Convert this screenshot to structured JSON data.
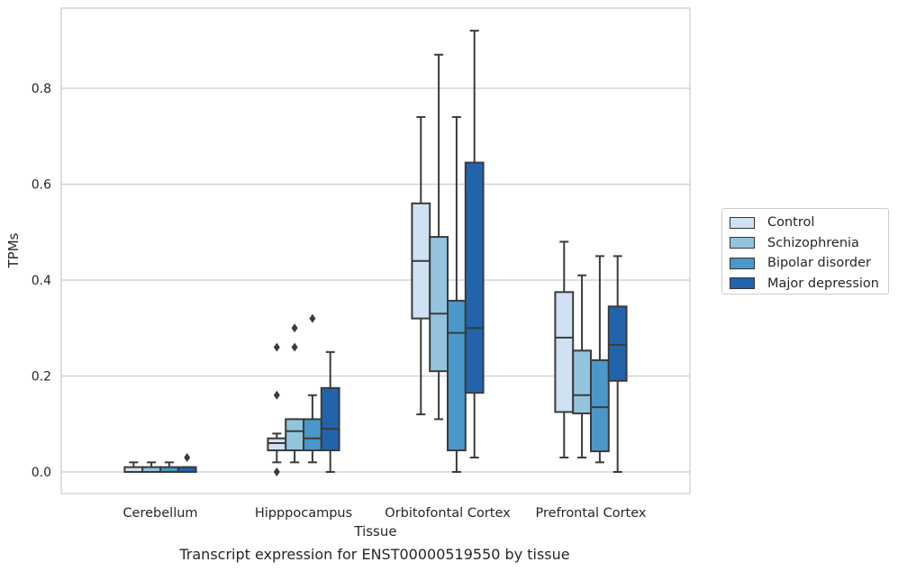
{
  "chart_data": {
    "type": "box",
    "xlabel": "Tissue",
    "ylabel": "TPMs",
    "ylim": [
      -0.045,
      0.965
    ],
    "yticks": [
      0.0,
      0.2,
      0.4,
      0.6,
      0.8
    ],
    "ytick_labels": [
      "0.0",
      "0.2",
      "0.4",
      "0.6",
      "0.8"
    ],
    "grid": "horizontal",
    "legend_position": "right",
    "categories": [
      "Cerebellum",
      "Hipppocampus",
      "Orbitofontal Cortex",
      "Prefrontal Cortex"
    ],
    "series": [
      {
        "name": "Control",
        "color": "#cfe1f2",
        "boxes": [
          {
            "whisker_low": 0.0,
            "q1": 0.0,
            "median": 0.0,
            "q3": 0.01,
            "whisker_high": 0.02,
            "outliers": []
          },
          {
            "whisker_low": 0.02,
            "q1": 0.045,
            "median": 0.06,
            "q3": 0.07,
            "whisker_high": 0.08,
            "outliers": [
              0.0,
              0.16,
              0.26
            ]
          },
          {
            "whisker_low": 0.12,
            "q1": 0.32,
            "median": 0.44,
            "q3": 0.56,
            "whisker_high": 0.74,
            "outliers": []
          },
          {
            "whisker_low": 0.03,
            "q1": 0.125,
            "median": 0.28,
            "q3": 0.375,
            "whisker_high": 0.48,
            "outliers": []
          }
        ]
      },
      {
        "name": "Schizophrenia",
        "color": "#93c4de",
        "boxes": [
          {
            "whisker_low": 0.0,
            "q1": 0.0,
            "median": 0.0,
            "q3": 0.01,
            "whisker_high": 0.02,
            "outliers": []
          },
          {
            "whisker_low": 0.02,
            "q1": 0.045,
            "median": 0.085,
            "q3": 0.11,
            "whisker_high": 0.11,
            "outliers": [
              0.26,
              0.3
            ]
          },
          {
            "whisker_low": 0.11,
            "q1": 0.21,
            "median": 0.33,
            "q3": 0.49,
            "whisker_high": 0.87,
            "outliers": []
          },
          {
            "whisker_low": 0.03,
            "q1": 0.122,
            "median": 0.16,
            "q3": 0.253,
            "whisker_high": 0.41,
            "outliers": []
          }
        ]
      },
      {
        "name": "Bipolar disorder",
        "color": "#4a98c9",
        "boxes": [
          {
            "whisker_low": 0.0,
            "q1": 0.0,
            "median": 0.0,
            "q3": 0.01,
            "whisker_high": 0.02,
            "outliers": []
          },
          {
            "whisker_low": 0.02,
            "q1": 0.045,
            "median": 0.07,
            "q3": 0.11,
            "whisker_high": 0.16,
            "outliers": [
              0.32
            ]
          },
          {
            "whisker_low": 0.0,
            "q1": 0.045,
            "median": 0.29,
            "q3": 0.357,
            "whisker_high": 0.74,
            "outliers": []
          },
          {
            "whisker_low": 0.02,
            "q1": 0.043,
            "median": 0.135,
            "q3": 0.233,
            "whisker_high": 0.45,
            "outliers": []
          }
        ]
      },
      {
        "name": "Major depression",
        "color": "#2164ab",
        "boxes": [
          {
            "whisker_low": 0.0,
            "q1": 0.0,
            "median": 0.0,
            "q3": 0.01,
            "whisker_high": 0.01,
            "outliers": [
              0.03
            ]
          },
          {
            "whisker_low": 0.0,
            "q1": 0.045,
            "median": 0.09,
            "q3": 0.175,
            "whisker_high": 0.25,
            "outliers": []
          },
          {
            "whisker_low": 0.03,
            "q1": 0.165,
            "median": 0.3,
            "q3": 0.645,
            "whisker_high": 0.92,
            "outliers": []
          },
          {
            "whisker_low": 0.0,
            "q1": 0.19,
            "median": 0.265,
            "q3": 0.345,
            "whisker_high": 0.45,
            "outliers": []
          }
        ]
      }
    ],
    "caption": "Transcript expression for ENST00000519550 by tissue"
  }
}
